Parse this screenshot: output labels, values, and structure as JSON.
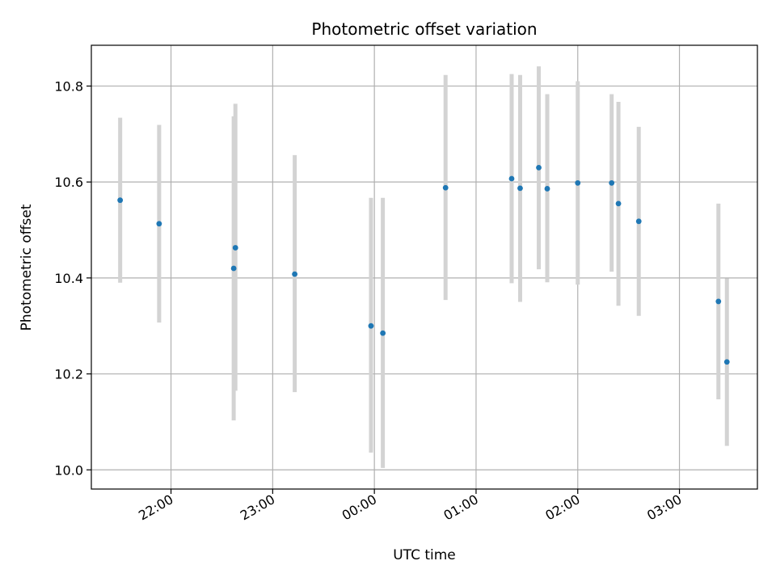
{
  "chart_data": {
    "type": "scatter",
    "title": "Photometric offset variation",
    "xlabel": "UTC time",
    "ylabel": "Photometric offset",
    "x_axis_kind": "time",
    "x_ticks": [
      "22:00",
      "23:00",
      "00:00",
      "01:00",
      "02:00",
      "03:00"
    ],
    "y_ticks": [
      "10.0",
      "10.2",
      "10.4",
      "10.6",
      "10.8"
    ],
    "xlim": [
      "21:13",
      "03:46"
    ],
    "ylim": [
      9.96,
      10.885
    ],
    "grid": true,
    "legend": "none",
    "colors": {
      "marker": "#1f77b4",
      "error_bar": "#d3d3d3",
      "grid": "#b0b0b0"
    },
    "series": [
      {
        "x": [
          "21:30",
          "21:53",
          "22:37",
          "22:38",
          "23:13",
          "23:58",
          "00:05",
          "00:42",
          "01:21",
          "01:26",
          "01:37",
          "01:42",
          "02:00",
          "02:20",
          "02:24",
          "02:36",
          "03:23",
          "03:28"
        ],
        "y": [
          10.562,
          10.513,
          10.42,
          10.463,
          10.408,
          10.3,
          10.285,
          10.588,
          10.607,
          10.587,
          10.63,
          10.586,
          10.598,
          10.598,
          10.555,
          10.518,
          10.351,
          10.225
        ],
        "yerr_low": [
          10.39,
          10.307,
          10.103,
          10.165,
          10.162,
          10.036,
          10.004,
          10.354,
          10.389,
          10.35,
          10.418,
          10.391,
          10.386,
          10.413,
          10.342,
          10.321,
          10.147,
          10.05
        ],
        "yerr_high": [
          10.734,
          10.719,
          10.737,
          10.763,
          10.656,
          10.567,
          10.567,
          10.823,
          10.825,
          10.823,
          10.841,
          10.783,
          10.81,
          10.783,
          10.767,
          10.715,
          10.555,
          10.399
        ]
      }
    ]
  }
}
